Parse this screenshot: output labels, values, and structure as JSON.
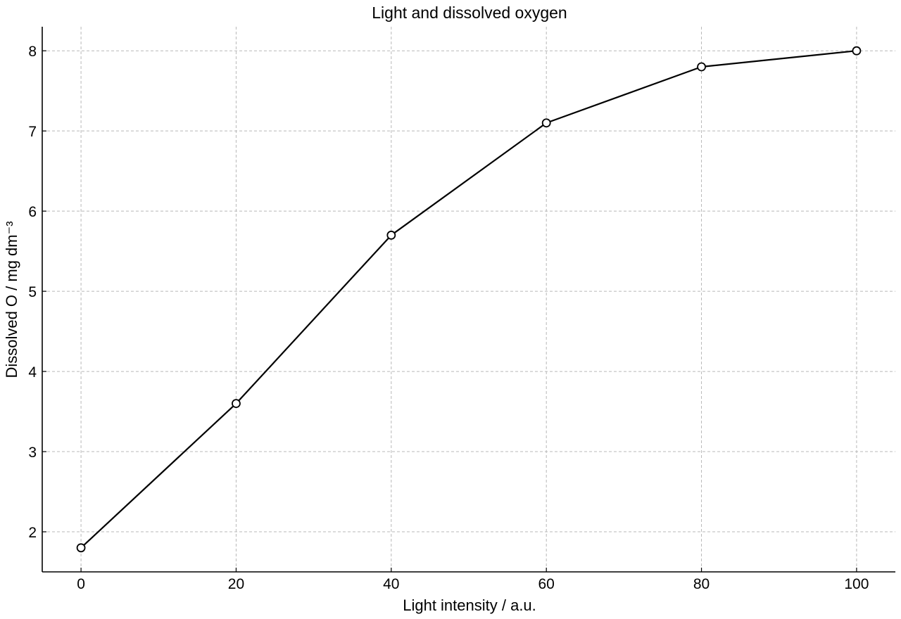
{
  "chart_data": {
    "type": "line",
    "title": "Light and dissolved oxygen",
    "xlabel": "Light intensity / a.u.",
    "ylabel": "Dissolved O  / mg dm⁻³",
    "x": [
      0,
      20,
      40,
      60,
      80,
      100
    ],
    "series": [
      {
        "values": [
          1.8,
          3.6,
          5.7,
          7.1,
          7.8,
          8.0
        ],
        "color": "#000000",
        "marker": "open-circle"
      }
    ],
    "xlim": [
      -5,
      105
    ],
    "ylim": [
      1.5,
      8.3
    ],
    "xticks": [
      0,
      20,
      40,
      60,
      80,
      100
    ],
    "yticks": [
      2,
      3,
      4,
      5,
      6,
      7,
      8
    ],
    "xtick_labels": [
      "0",
      "20",
      "40",
      "60",
      "80",
      "100"
    ],
    "ytick_labels": [
      "2",
      "3",
      "4",
      "5",
      "6",
      "7",
      "8"
    ],
    "grid": true,
    "legend": "none"
  }
}
